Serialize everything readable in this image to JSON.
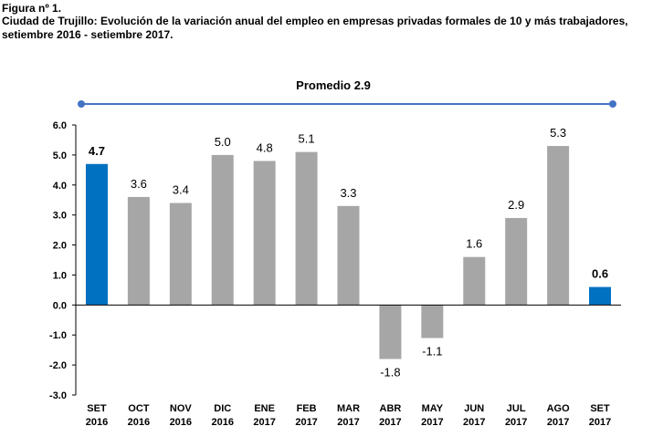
{
  "header": {
    "figure_label": "Figura nº 1.",
    "title": "Ciudad de Trujillo: Evolución de la variación anual del empleo en empresas privadas formales de 10 y más trabajadores, setiembre 2016 - setiembre 2017."
  },
  "chart_data": {
    "type": "bar",
    "categories": [
      [
        "SET",
        "2016"
      ],
      [
        "OCT",
        "2016"
      ],
      [
        "NOV",
        "2016"
      ],
      [
        "DIC",
        "2016"
      ],
      [
        "ENE",
        "2017"
      ],
      [
        "FEB",
        "2017"
      ],
      [
        "MAR",
        "2017"
      ],
      [
        "ABR",
        "2017"
      ],
      [
        "MAY",
        "2017"
      ],
      [
        "JUN",
        "2017"
      ],
      [
        "JUL",
        "2017"
      ],
      [
        "AGO",
        "2017"
      ],
      [
        "SET",
        "2017"
      ]
    ],
    "values": [
      4.7,
      3.6,
      3.4,
      5.0,
      4.8,
      5.1,
      3.3,
      -1.8,
      -1.1,
      1.6,
      2.9,
      5.3,
      0.6
    ],
    "data_labels": [
      "4.7",
      "3.6",
      "3.4",
      "5.0",
      "4.8",
      "5.1",
      "3.3",
      "-1.8",
      "-1.1",
      "1.6",
      "2.9",
      "5.3",
      "0.6"
    ],
    "highlighted": [
      0,
      12
    ],
    "ylim": [
      -3.0,
      6.0
    ],
    "yticks": [
      "6.0",
      "5.0",
      "4.0",
      "3.0",
      "2.0",
      "1.0",
      "0.0",
      "-1.0",
      "-2.0",
      "-3.0"
    ],
    "ytick_values": [
      6,
      5,
      4,
      3,
      2,
      1,
      0,
      -1,
      -2,
      -3
    ],
    "average_label": "Promedio 2.9",
    "colors": {
      "bar": "#A6A6A6",
      "highlight": "#0070C0",
      "average_line": "#4472C4",
      "axis": "#000000"
    },
    "grid": false,
    "legend": "none"
  }
}
